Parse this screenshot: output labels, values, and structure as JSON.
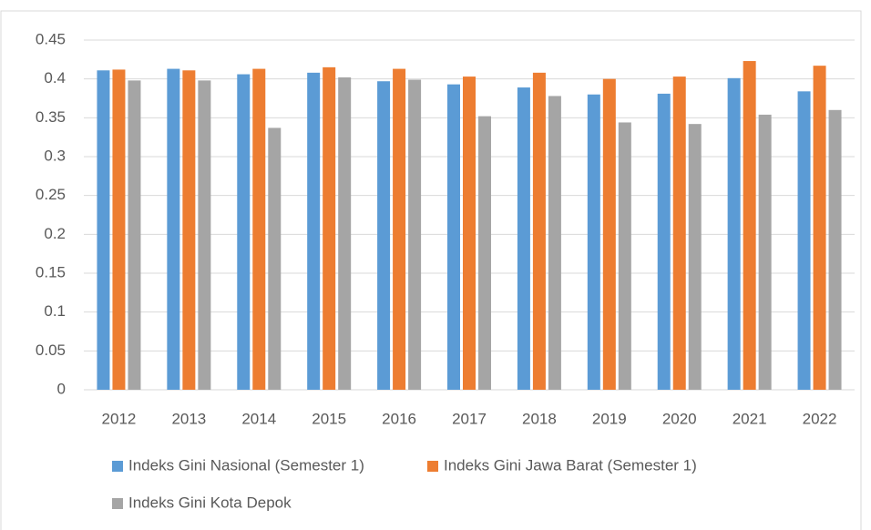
{
  "chart_data": {
    "type": "bar",
    "categories": [
      "2012",
      "2013",
      "2014",
      "2015",
      "2016",
      "2017",
      "2018",
      "2019",
      "2020",
      "2021",
      "2022"
    ],
    "series": [
      {
        "name": "Indeks Gini Nasional (Semester 1)",
        "color": "#5b9bd5",
        "values": [
          0.411,
          0.413,
          0.406,
          0.408,
          0.397,
          0.393,
          0.389,
          0.38,
          0.381,
          0.401,
          0.384
        ]
      },
      {
        "name": "Indeks Gini Jawa Barat (Semester 1)",
        "color": "#ed7d31",
        "values": [
          0.412,
          0.411,
          0.413,
          0.415,
          0.413,
          0.403,
          0.408,
          0.4,
          0.403,
          0.423,
          0.417
        ]
      },
      {
        "name": "Indeks Gini Kota Depok",
        "color": "#a5a5a5",
        "values": [
          0.398,
          0.398,
          0.337,
          0.402,
          0.399,
          0.352,
          0.378,
          0.344,
          0.342,
          0.354,
          0.36
        ]
      }
    ],
    "ylim": [
      0,
      0.45
    ],
    "yticks": [
      0,
      0.05,
      0.1,
      0.15,
      0.2,
      0.25,
      0.3,
      0.35,
      0.4,
      0.45
    ],
    "grid": true,
    "legend": "bottom"
  }
}
